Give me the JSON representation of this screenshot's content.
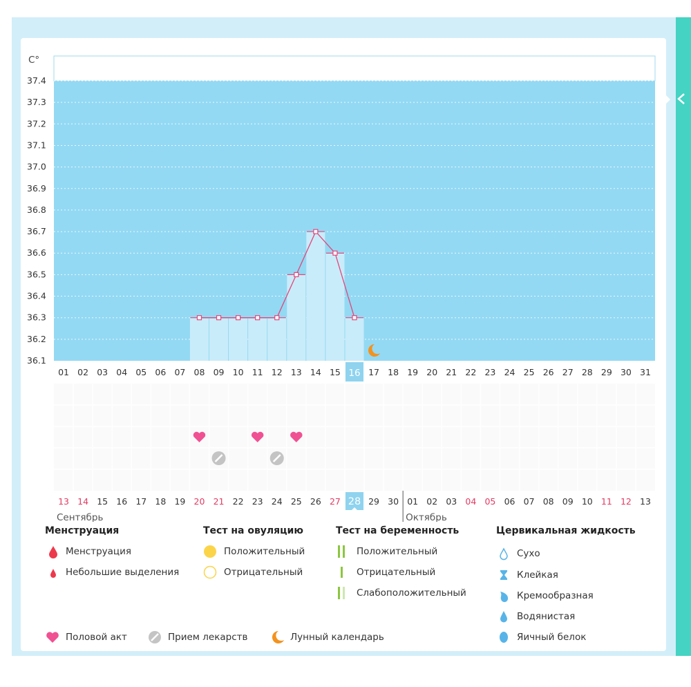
{
  "chart_data": {
    "type": "bar",
    "yunit": "C°",
    "ylim": [
      36.1,
      37.4
    ],
    "yticks": [
      "36.1",
      "36.2",
      "36.3",
      "36.4",
      "36.5",
      "36.6",
      "36.7",
      "36.8",
      "36.9",
      "37.0",
      "37.1",
      "37.2",
      "37.3",
      "37.4"
    ],
    "top_days": [
      "01",
      "02",
      "03",
      "04",
      "05",
      "06",
      "07",
      "08",
      "09",
      "10",
      "11",
      "12",
      "13",
      "14",
      "15",
      "16",
      "17",
      "18",
      "19",
      "20",
      "21",
      "22",
      "23",
      "24",
      "25",
      "26",
      "27",
      "28",
      "29",
      "30",
      "31"
    ],
    "highlight_top_day": "16",
    "temperatures": [
      {
        "day": "08",
        "value": 36.3
      },
      {
        "day": "09",
        "value": 36.3
      },
      {
        "day": "10",
        "value": 36.3
      },
      {
        "day": "11",
        "value": 36.3
      },
      {
        "day": "12",
        "value": 36.3
      },
      {
        "day": "13",
        "value": 36.5
      },
      {
        "day": "14",
        "value": 36.7
      },
      {
        "day": "15",
        "value": 36.6
      },
      {
        "day": "16",
        "value": 36.3
      }
    ],
    "moon_day": "17",
    "intercourse_days": [
      "08",
      "11",
      "13"
    ],
    "medication_days": [
      "09",
      "12"
    ],
    "bottom_days": [
      "13",
      "14",
      "15",
      "16",
      "17",
      "18",
      "19",
      "20",
      "21",
      "22",
      "23",
      "24",
      "25",
      "26",
      "27",
      "28",
      "29",
      "30",
      "01",
      "02",
      "03",
      "04",
      "05",
      "06",
      "07",
      "08",
      "09",
      "10",
      "11",
      "12",
      "13"
    ],
    "bottom_red_days_index": [
      0,
      1,
      7,
      8,
      14,
      21,
      22,
      28,
      29
    ],
    "highlight_bottom_index": 15,
    "month_labels": [
      {
        "label": "Сентябрь",
        "start_index": 0
      },
      {
        "label": "Октябрь",
        "start_index": 18
      }
    ],
    "colors": {
      "plot_bg": "#93d9f3",
      "bar_fill": "#c9ecfa",
      "line": "#e4457a",
      "heart": "#f05192",
      "pill": "#c4c4c4",
      "moon": "#f4921d",
      "red_day": "#e23a62",
      "highlight": "#8fd3ef"
    }
  },
  "legend": {
    "menstruation": {
      "title": "Менструация",
      "items": [
        {
          "label": "Менструация",
          "icon": "drop-large-icon"
        },
        {
          "label": "Небольшие выделения",
          "icon": "drop-small-icon"
        }
      ]
    },
    "ovulation_test": {
      "title": "Тест на овуляцию",
      "items": [
        {
          "label": "Положительный",
          "icon": "circle-filled-icon"
        },
        {
          "label": "Отрицательный",
          "icon": "circle-outline-icon"
        }
      ]
    },
    "pregnancy_test": {
      "title": "Тест на беременность",
      "items": [
        {
          "label": "Положительный",
          "icon": "two-bars-icon"
        },
        {
          "label": "Отрицательный",
          "icon": "one-bar-icon"
        },
        {
          "label": "Слабоположительный",
          "icon": "faint-bars-icon"
        }
      ]
    },
    "cervical_fluid": {
      "title": "Цервикальная жидкость",
      "items": [
        {
          "label": "Сухо",
          "icon": "drop-outline-icon"
        },
        {
          "label": "Клейкая",
          "icon": "hourglass-icon"
        },
        {
          "label": "Кремообразная",
          "icon": "cream-drop-icon"
        },
        {
          "label": "Водянистая",
          "icon": "water-drop-icon"
        },
        {
          "label": "Яичный белок",
          "icon": "egg-white-icon"
        }
      ]
    },
    "bottom_row": [
      {
        "label": "Половой акт",
        "icon": "heart-icon"
      },
      {
        "label": "Прием лекарств",
        "icon": "pill-icon"
      },
      {
        "label": "Лунный календарь",
        "icon": "moon-icon"
      }
    ],
    "colors": {
      "red": "#ec3a4c",
      "yellow": "#fbd44a",
      "green": "#8cc63f",
      "light_green": "#cde8ae",
      "blue": "#58b4e8"
    }
  }
}
